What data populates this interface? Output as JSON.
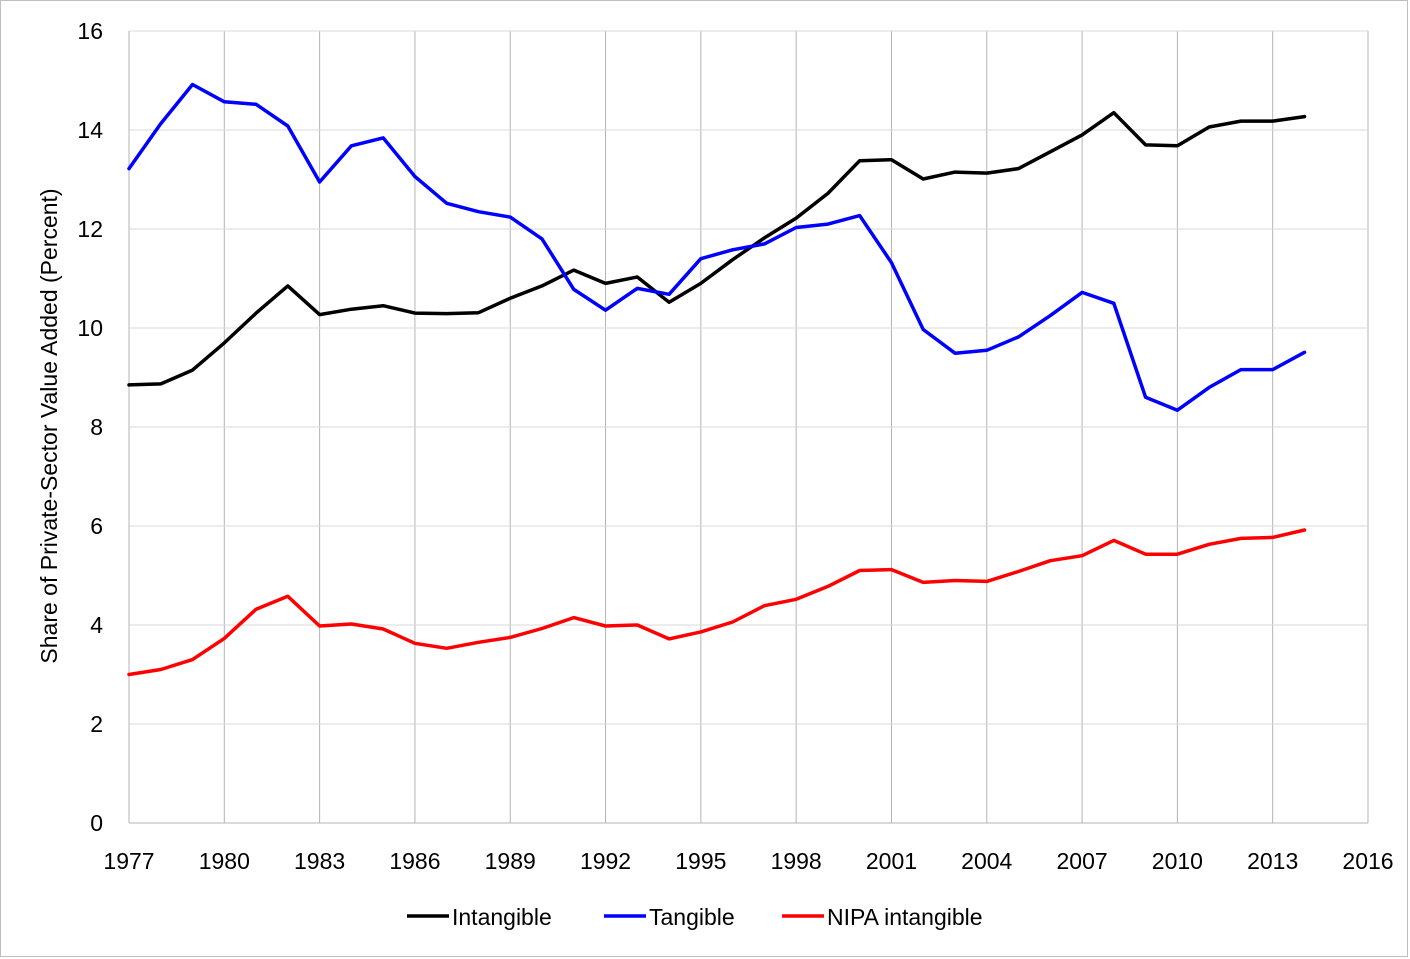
{
  "chart_data": {
    "type": "line",
    "title": "",
    "xlabel": "",
    "ylabel": "Share of Private-Sector Value Added (Percent)",
    "xlim": [
      1977,
      2016
    ],
    "ylim": [
      0,
      16
    ],
    "x_ticks": [
      "1977",
      "1980",
      "1983",
      "1986",
      "1989",
      "1992",
      "1995",
      "1998",
      "2001",
      "2004",
      "2007",
      "2010",
      "2013",
      "2016"
    ],
    "y_ticks": [
      "0",
      "2",
      "4",
      "6",
      "8",
      "10",
      "12",
      "14",
      "16"
    ],
    "grid": {
      "vertical": true,
      "horizontal": true
    },
    "legend_position": "bottom",
    "x": [
      1977,
      1978,
      1979,
      1980,
      1981,
      1982,
      1983,
      1984,
      1985,
      1986,
      1987,
      1988,
      1989,
      1990,
      1991,
      1992,
      1993,
      1994,
      1995,
      1996,
      1997,
      1998,
      1999,
      2000,
      2001,
      2002,
      2003,
      2004,
      2005,
      2006,
      2007,
      2008,
      2009,
      2010,
      2011,
      2012,
      2013,
      2014
    ],
    "series": [
      {
        "name": "Intangible",
        "color": "#000000",
        "values": [
          8.85,
          8.87,
          9.15,
          9.7,
          10.3,
          10.85,
          10.27,
          10.38,
          10.45,
          10.3,
          10.29,
          10.31,
          10.6,
          10.85,
          11.17,
          10.9,
          11.03,
          10.52,
          10.9,
          11.38,
          11.82,
          12.22,
          12.72,
          13.38,
          13.4,
          13.01,
          13.15,
          13.13,
          13.22,
          13.56,
          13.9,
          14.35,
          13.7,
          13.68,
          14.06,
          14.18,
          14.18,
          14.27
        ]
      },
      {
        "name": "Tangible",
        "color": "#0000ff",
        "values": [
          13.22,
          14.13,
          14.92,
          14.57,
          14.52,
          14.08,
          12.95,
          13.68,
          13.84,
          13.06,
          12.52,
          12.35,
          12.24,
          11.8,
          10.78,
          10.36,
          10.8,
          10.68,
          11.4,
          11.58,
          11.7,
          12.03,
          12.1,
          12.27,
          11.32,
          9.97,
          9.49,
          9.55,
          9.82,
          10.25,
          10.72,
          10.5,
          8.6,
          8.34,
          8.8,
          9.16,
          9.16,
          9.51
        ]
      },
      {
        "name": "NIPA intangible",
        "color": "#ff0000",
        "values": [
          3.0,
          3.1,
          3.3,
          3.73,
          4.32,
          4.58,
          3.98,
          4.02,
          3.92,
          3.63,
          3.53,
          3.65,
          3.75,
          3.93,
          4.15,
          3.98,
          4.0,
          3.72,
          3.86,
          4.06,
          4.39,
          4.52,
          4.78,
          5.1,
          5.12,
          4.86,
          4.9,
          4.88,
          5.08,
          5.3,
          5.4,
          5.71,
          5.43,
          5.43,
          5.63,
          5.75,
          5.77,
          5.92
        ]
      }
    ]
  }
}
